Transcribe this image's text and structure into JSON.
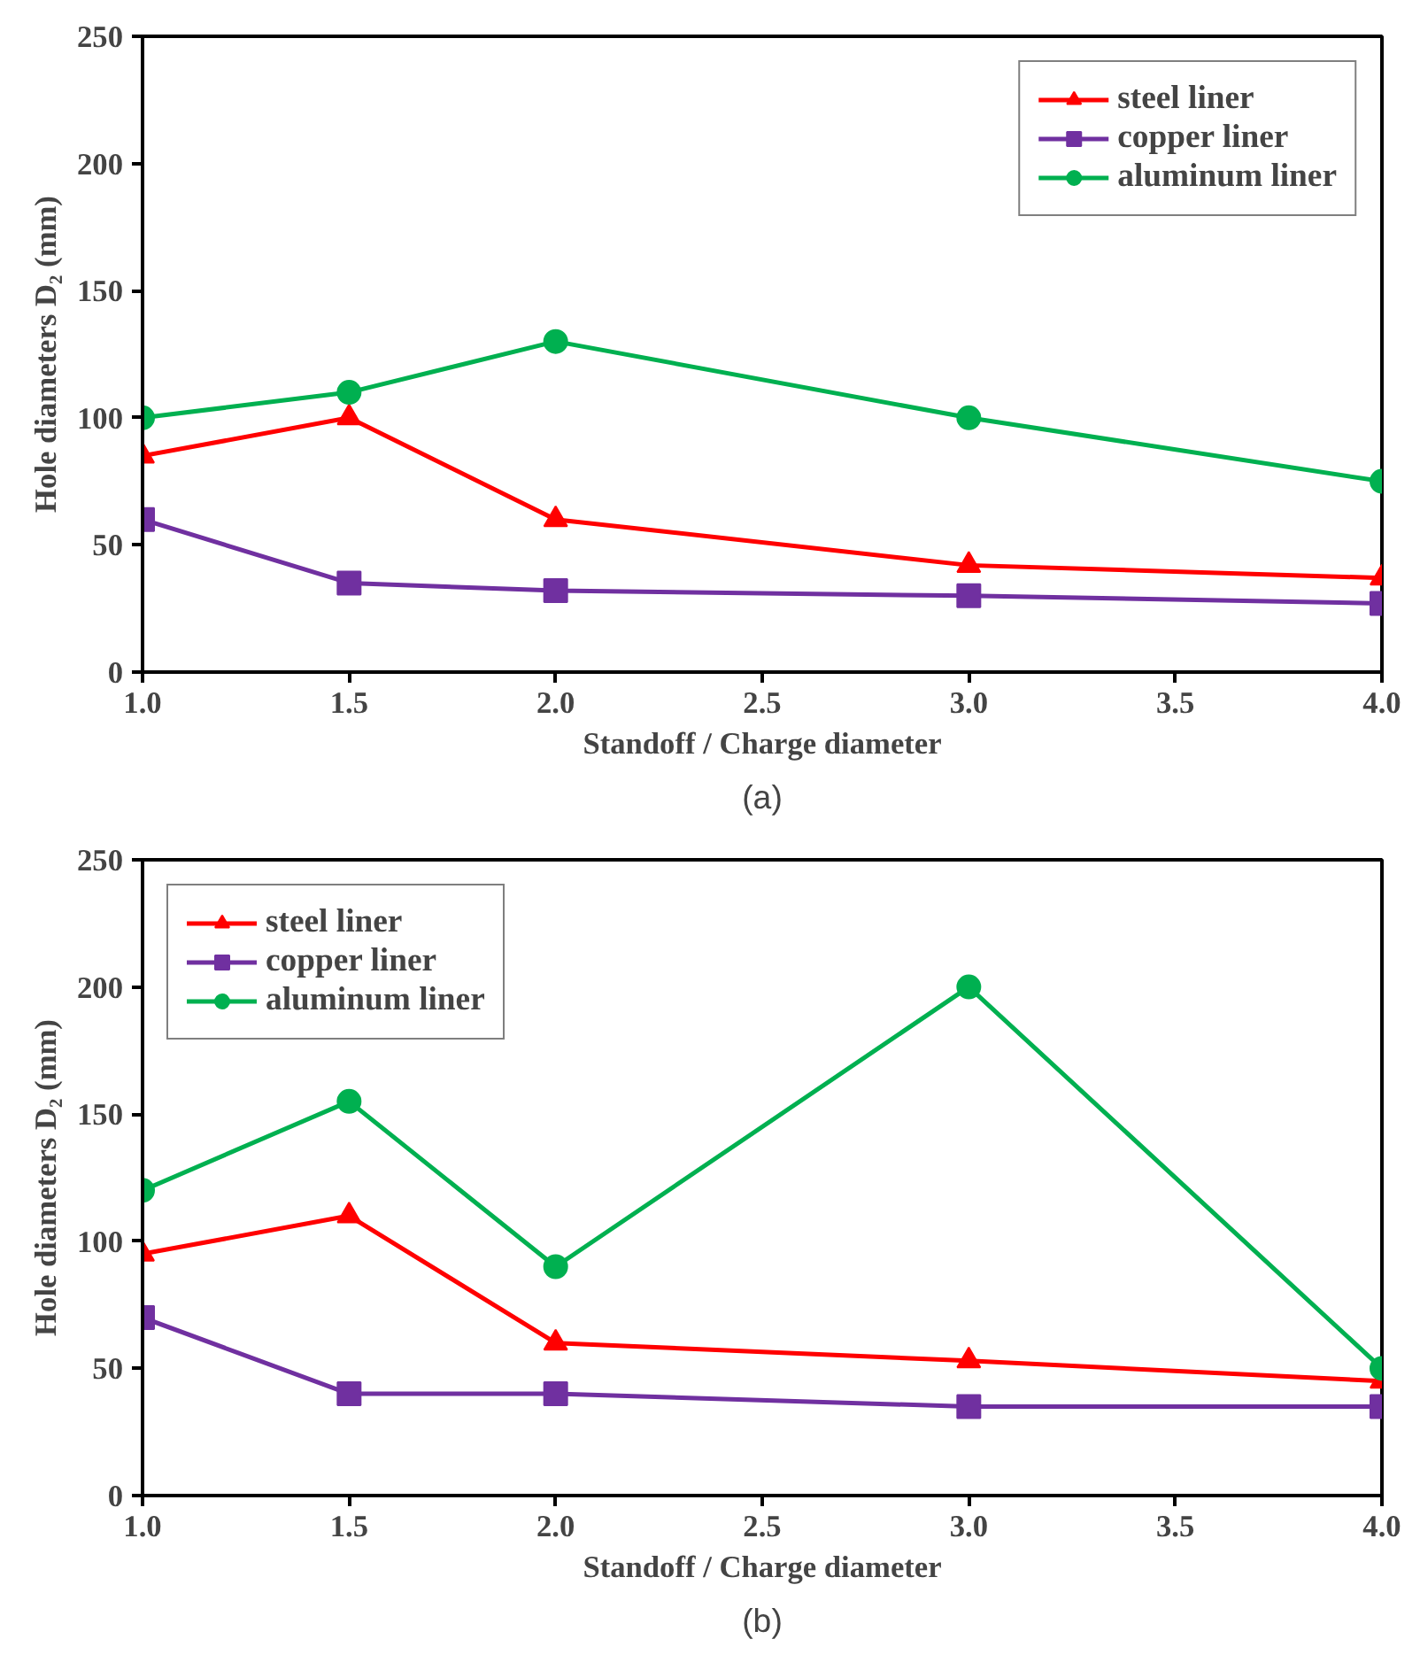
{
  "chart_data": [
    {
      "type": "line",
      "xlabel": "Standoff / Charge diameter",
      "ylabel": "Hole diameters D₂ (mm)",
      "annotations": [
        "(a)"
      ],
      "x": [
        1.0,
        1.5,
        2.0,
        3.0,
        4.0
      ],
      "xlim": [
        1.0,
        4.0
      ],
      "xticks": [
        {
          "value": 1.0,
          "label": "1.0"
        },
        {
          "value": 1.5,
          "label": "1.5"
        },
        {
          "value": 2.0,
          "label": "2.0"
        },
        {
          "value": 2.5,
          "label": "2.5"
        },
        {
          "value": 3.0,
          "label": "3.0"
        },
        {
          "value": 3.5,
          "label": "3.5"
        },
        {
          "value": 4.0,
          "label": "4.0"
        }
      ],
      "ylim": [
        0,
        250
      ],
      "yticks": [
        0,
        50,
        100,
        150,
        200,
        250
      ],
      "grid": false,
      "legend": "top right",
      "series": [
        {
          "name": "steel liner",
          "color": "#ff0000",
          "marker": "triangle",
          "values": [
            85,
            100,
            60,
            42,
            37
          ]
        },
        {
          "name": "copper liner",
          "color": "#7030a0",
          "marker": "square",
          "values": [
            60,
            35,
            32,
            30,
            27
          ]
        },
        {
          "name": "aluminum liner",
          "color": "#00b050",
          "marker": "circle",
          "values": [
            100,
            110,
            130,
            100,
            75
          ]
        }
      ]
    },
    {
      "type": "line",
      "xlabel": "Standoff / Charge diameter",
      "ylabel": "Hole diameters D₂ (mm)",
      "annotations": [
        "(b)"
      ],
      "x": [
        1.0,
        1.5,
        2.0,
        3.0,
        4.0
      ],
      "xlim": [
        1.0,
        4.0
      ],
      "xticks": [
        {
          "value": 1.0,
          "label": "1.0"
        },
        {
          "value": 1.5,
          "label": "1.5"
        },
        {
          "value": 2.0,
          "label": "2.0"
        },
        {
          "value": 2.5,
          "label": "2.5"
        },
        {
          "value": 3.0,
          "label": "3.0"
        },
        {
          "value": 3.5,
          "label": "3.5"
        },
        {
          "value": 4.0,
          "label": "4.0"
        }
      ],
      "ylim": [
        0,
        250
      ],
      "yticks": [
        0,
        50,
        100,
        150,
        200,
        250
      ],
      "grid": false,
      "legend": "top left",
      "series": [
        {
          "name": "steel liner",
          "color": "#ff0000",
          "marker": "triangle",
          "values": [
            95,
            110,
            60,
            53,
            45
          ]
        },
        {
          "name": "copper liner",
          "color": "#7030a0",
          "marker": "square",
          "values": [
            70,
            40,
            40,
            35,
            35
          ]
        },
        {
          "name": "aluminum liner",
          "color": "#00b050",
          "marker": "circle",
          "values": [
            120,
            155,
            90,
            200,
            50
          ]
        }
      ]
    }
  ]
}
